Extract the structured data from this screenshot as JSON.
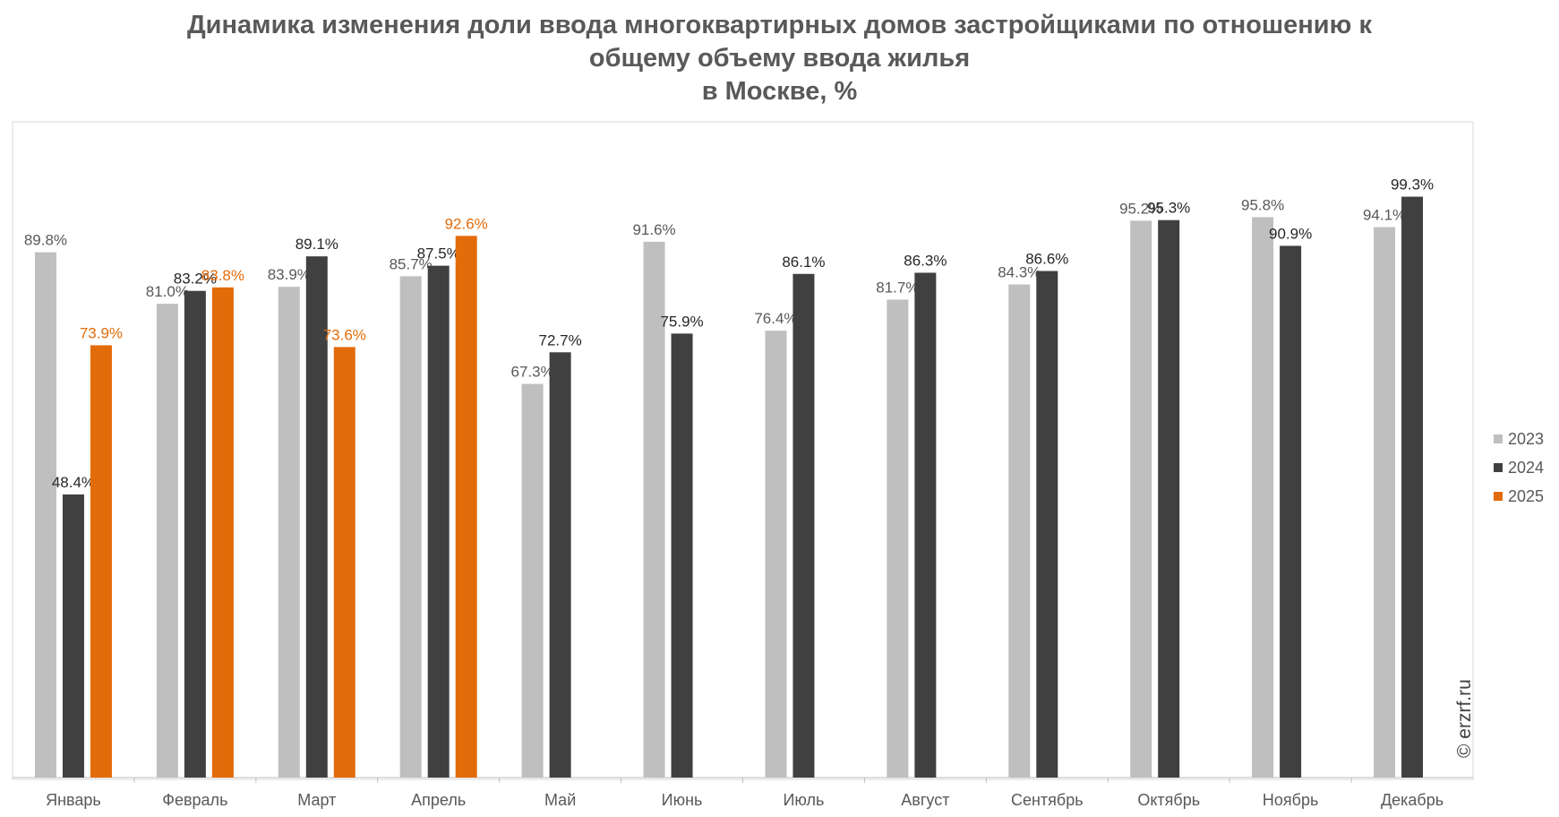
{
  "title_lines": [
    "Динамика изменения доли ввода многоквартирных домов застройщиками по отношению к",
    "общему объему ввода жилья",
    "в Москве, %"
  ],
  "watermark": "© erzrf.ru",
  "colors": {
    "s2023": "#bfbfbf",
    "s2024": "#404040",
    "s2025": "#e36c0a",
    "label_dark": "#262626",
    "label_grey": "#595959"
  },
  "chart_data": {
    "type": "bar",
    "title": "Динамика изменения доли ввода многоквартирных домов застройщиками по отношению к общему объему ввода жилья в Москве, %",
    "categories": [
      "Январь",
      "Февраль",
      "Март",
      "Апрель",
      "Май",
      "Июнь",
      "Июль",
      "Август",
      "Сентябрь",
      "Октябрь",
      "Ноябрь",
      "Декабрь"
    ],
    "series": [
      {
        "name": "2023",
        "values": [
          89.8,
          81.0,
          83.9,
          85.7,
          67.3,
          91.6,
          76.4,
          81.7,
          84.3,
          95.2,
          95.8,
          94.1
        ],
        "labels": [
          "89.8%",
          "81.0%",
          "83.9%",
          "85.7%",
          "67.3%",
          "91.6%",
          "76.4%",
          "81.7%",
          "84.3%",
          "95.2%",
          "95.8%",
          "94.1%"
        ]
      },
      {
        "name": "2024",
        "values": [
          48.4,
          83.2,
          89.1,
          87.5,
          72.7,
          75.9,
          86.1,
          86.3,
          86.6,
          95.3,
          90.9,
          99.3
        ],
        "labels": [
          "48.4%",
          "83.2%",
          "89.1%",
          "87.5%",
          "72.7%",
          "75.9%",
          "86.1%",
          "86.3%",
          "86.6%",
          "95.3%",
          "90.9%",
          "99.3%"
        ]
      },
      {
        "name": "2025",
        "values": [
          73.9,
          83.8,
          73.6,
          92.6,
          null,
          null,
          null,
          null,
          null,
          null,
          null,
          null
        ],
        "labels": [
          "73.9%",
          "83.8%",
          "73.6%",
          "92.6%",
          null,
          null,
          null,
          null,
          null,
          null,
          null,
          null
        ]
      }
    ],
    "ylim": [
      0,
      110
    ],
    "grid": false,
    "legend_position": "right"
  }
}
